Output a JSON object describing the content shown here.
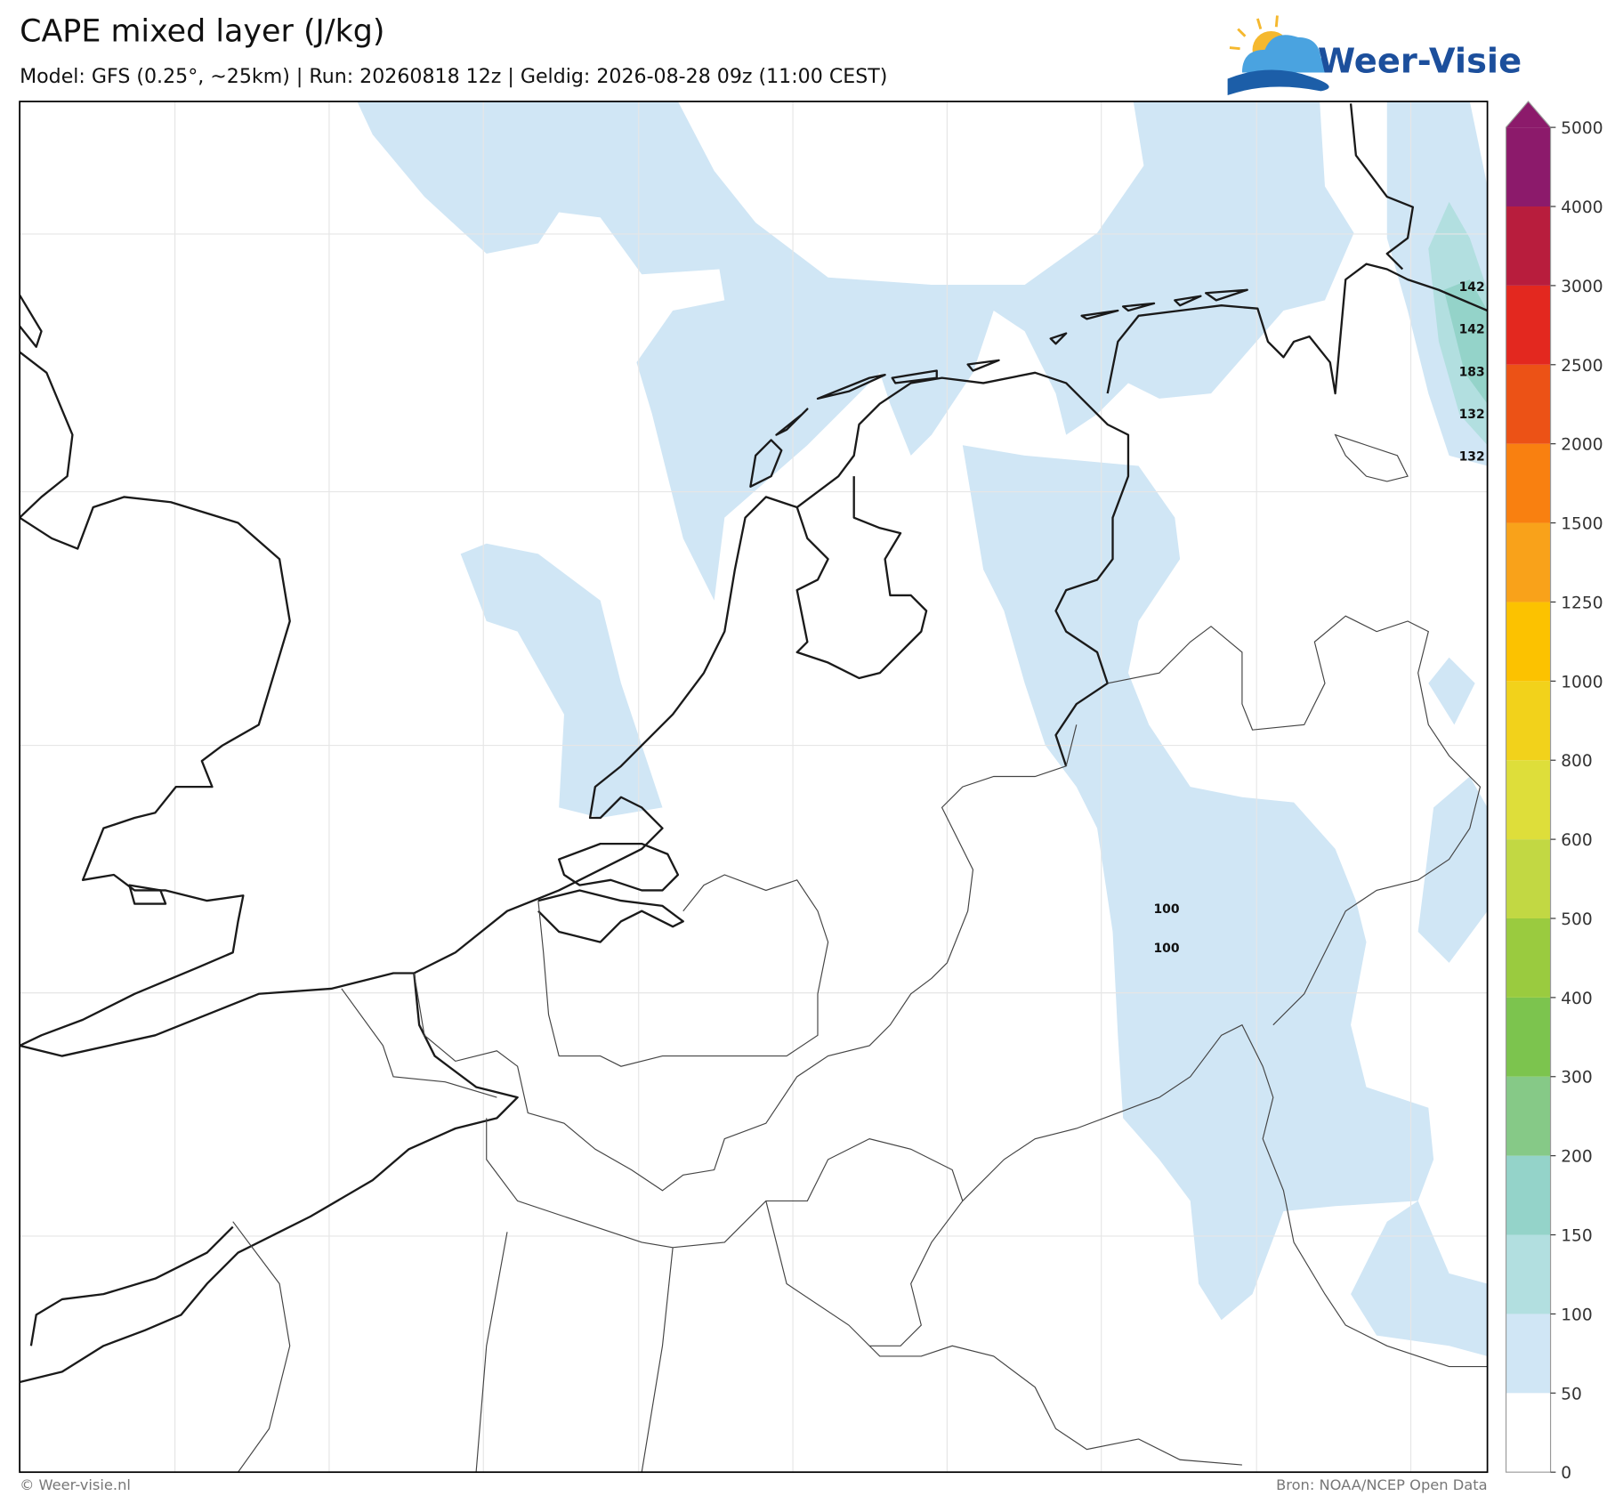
{
  "header": {
    "title": "CAPE mixed layer (J/kg)",
    "subtitle": "Model: GFS (0.25°, ~25km)  |  Run: 20260818 12z  |  Geldig: 2026-08-28 09z (11:00 CEST)",
    "logo": "Weer-Visie"
  },
  "colorbar": {
    "ticks": [
      0,
      50,
      100,
      150,
      200,
      300,
      400,
      500,
      600,
      800,
      1000,
      1250,
      1500,
      2000,
      2500,
      3000,
      4000,
      5000
    ],
    "colors": [
      "#ffffff",
      "#d0e6f5",
      "#b2dfe0",
      "#94d3c9",
      "#86c987",
      "#7cc44e",
      "#9acb3f",
      "#c2d843",
      "#dede3a",
      "#f2d21b",
      "#fcc200",
      "#f9a21a",
      "#f98010",
      "#ec5216",
      "#e3281f",
      "#b81d3d",
      "#8c1a6b"
    ]
  },
  "contour_labels": [
    "142",
    "142",
    "183",
    "132",
    "132",
    "100",
    "100"
  ],
  "footer": {
    "left": "© Weer-visie.nl",
    "right": "Bron: NOAA/NCEP Open Data"
  }
}
